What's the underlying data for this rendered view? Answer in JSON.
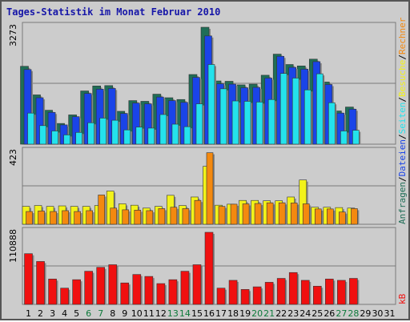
{
  "chart_data": {
    "type": "bar",
    "title": "Tages-Statistik im Monat Februar 2010",
    "categories": [
      "1",
      "2",
      "3",
      "4",
      "5",
      "6",
      "7",
      "8",
      "9",
      "10",
      "11",
      "12",
      "13",
      "14",
      "15",
      "16",
      "17",
      "18",
      "19",
      "20",
      "21",
      "22",
      "23",
      "24",
      "25",
      "26",
      "27",
      "28",
      "29",
      "30",
      "31"
    ],
    "weekend_days": [
      "6",
      "7",
      "13",
      "14",
      "20",
      "21",
      "27",
      "28"
    ],
    "panels": [
      {
        "name": "anfragen-dateien-seiten",
        "ymax_label": "3273",
        "ymax": 3273,
        "series": [
          {
            "name": "Anfragen",
            "color": "#1f6e57",
            "values": [
              2180,
              1380,
              950,
              580,
              820,
              1490,
              1630,
              1640,
              920,
              1220,
              1200,
              1400,
              1300,
              1250,
              1950,
              3273,
              1770,
              1760,
              1660,
              1680,
              1930,
              2520,
              2230,
              2190,
              2380,
              1740,
              930,
              1040,
              0,
              0,
              0
            ]
          },
          {
            "name": "Dateien",
            "color": "#1a44e8",
            "values": [
              2090,
              1300,
              890,
              540,
              770,
              1420,
              1540,
              1560,
              860,
              1150,
              1130,
              1320,
              1220,
              1170,
              1870,
              3030,
              1690,
              1680,
              1580,
              1590,
              1850,
              2460,
              2150,
              2100,
              2310,
              1670,
              870,
              980,
              0,
              0,
              0
            ]
          },
          {
            "name": "Seiten",
            "color": "#24e2ec",
            "values": [
              870,
              520,
              370,
              260,
              330,
              600,
              730,
              670,
              400,
              480,
              450,
              830,
              560,
              490,
              1130,
              2230,
              1550,
              1210,
              1200,
              1180,
              1250,
              1980,
              1850,
              1520,
              1970,
              1160,
              370,
              390,
              0,
              0,
              0
            ]
          }
        ]
      },
      {
        "name": "besuche-rechner",
        "ymax_label": "423",
        "ymax": 423,
        "series": [
          {
            "name": "Besuche",
            "color": "#f2f21a",
            "values": [
              105,
              110,
              105,
              108,
              105,
              105,
              110,
              195,
              120,
              112,
              95,
              105,
              170,
              110,
              160,
              340,
              112,
              118,
              140,
              140,
              138,
              138,
              160,
              260,
              100,
              100,
              98,
              95,
              0,
              0,
              0
            ]
          },
          {
            "name": "Rechner",
            "color": "#f4890f",
            "values": [
              75,
              78,
              75,
              80,
              75,
              80,
              172,
              95,
              85,
              83,
              80,
              92,
              100,
              92,
              140,
              420,
              105,
              118,
              120,
              122,
              126,
              126,
              125,
              120,
              90,
              90,
              72,
              92,
              0,
              0,
              0
            ]
          }
        ]
      },
      {
        "name": "kb",
        "ymax_label": "110888",
        "ymax": 110888,
        "series": [
          {
            "name": "kB",
            "color": "#f01010",
            "values": [
              78000,
              66000,
              39000,
              25000,
              38000,
              51000,
              57000,
              61000,
              33000,
              46000,
              43000,
              32000,
              38000,
              51000,
              61000,
              110888,
              25000,
              37000,
              23000,
              27000,
              34000,
              40000,
              49000,
              37000,
              28000,
              39000,
              37000,
              40000,
              0,
              0,
              0
            ]
          }
        ]
      }
    ],
    "right_legend": {
      "top": [
        {
          "text": "Anfragen",
          "color": "#1f6e57"
        },
        {
          "text": "/",
          "color": "#000000"
        },
        {
          "text": "Dateien",
          "color": "#1a44e8"
        },
        {
          "text": "/",
          "color": "#000000"
        },
        {
          "text": "Seiten",
          "color": "#24e2ec"
        },
        {
          "text": "/",
          "color": "#000000"
        },
        {
          "text": "Besuche",
          "color": "#f2f21a"
        },
        {
          "text": "/",
          "color": "#000000"
        },
        {
          "text": "Rechner",
          "color": "#f4890f"
        }
      ],
      "bottom": {
        "text": "kB",
        "color": "#f01010"
      }
    },
    "colors": {
      "background": "#cccccc",
      "title": "#1616a8",
      "weekday_label": "#000000",
      "weekend_label": "#0d7a3a",
      "panel_border": "#7a7a7a",
      "gridline": "#7a7a7a"
    }
  }
}
